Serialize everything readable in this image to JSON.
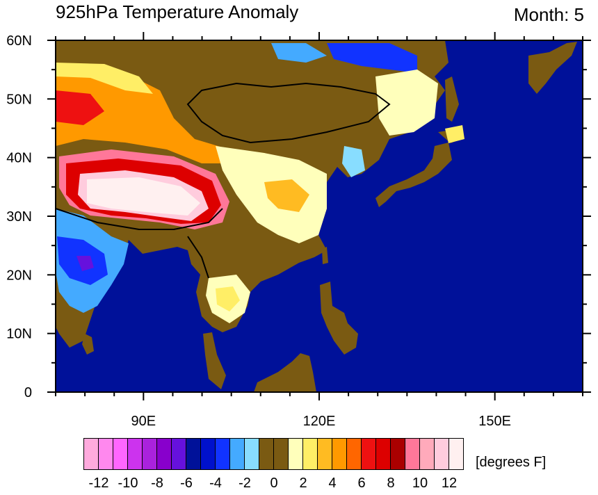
{
  "title": "925hPa Temperature Anomaly",
  "month_label": "Month: 5",
  "unit_label": "[degrees F]",
  "chart_data": {
    "type": "heatmap",
    "title": "925hPa Temperature Anomaly",
    "subtitle": "Month: 5",
    "xlim": [
      75,
      165
    ],
    "ylim": [
      0,
      60
    ],
    "x_ticks": [
      {
        "value": 90,
        "label": "90E"
      },
      {
        "value": 120,
        "label": "120E"
      },
      {
        "value": 150,
        "label": "150E"
      }
    ],
    "y_ticks": [
      {
        "value": 0,
        "label": "0"
      },
      {
        "value": 10,
        "label": "10N"
      },
      {
        "value": 20,
        "label": "20N"
      },
      {
        "value": 30,
        "label": "30N"
      },
      {
        "value": 40,
        "label": "40N"
      },
      {
        "value": 50,
        "label": "50N"
      },
      {
        "value": 60,
        "label": "60N"
      }
    ],
    "colorbar": {
      "unit": "[degrees F]",
      "labels": [
        "-12",
        "-10",
        "-8",
        "-6",
        "-4",
        "-2",
        "0",
        "2",
        "4",
        "6",
        "8",
        "10",
        "12"
      ],
      "label_values": [
        -12,
        -10,
        -8,
        -6,
        -4,
        -2,
        0,
        2,
        4,
        6,
        8,
        10,
        12
      ],
      "colors": [
        "#ffaadd",
        "#ff88ee",
        "#ff66ff",
        "#cc33ee",
        "#aa22dd",
        "#8800cc",
        "#6611dd",
        "#001199",
        "#0011cc",
        "#1133ff",
        "#44aaff",
        "#88ddff",
        "#7a5a12",
        "#7a5a12",
        "#ffffbb",
        "#ffee66",
        "#ffbb22",
        "#ff9900",
        "#ff6600",
        "#ee1111",
        "#dd0000",
        "#aa0000",
        "#ff7799",
        "#ffaabb",
        "#ffccdd",
        "#fff0f0"
      ]
    },
    "ocean_color": "#001199"
  }
}
